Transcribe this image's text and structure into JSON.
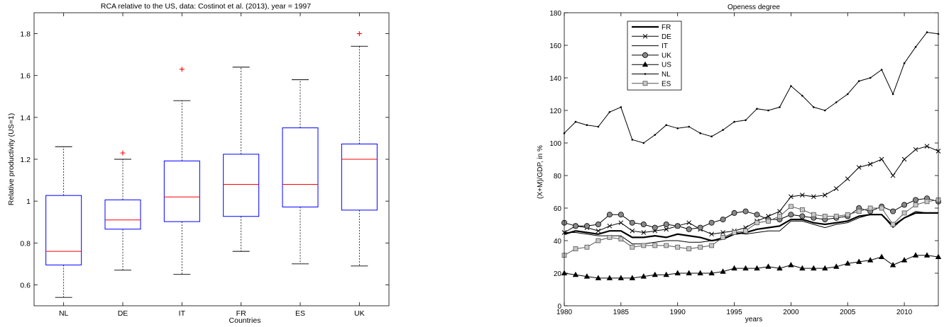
{
  "chart_data": [
    {
      "type": "box",
      "title": "RCA relative to the US, data: Costinot et al. (2013), year = 1997",
      "xlabel": "Countries",
      "ylabel": "Relative productivity (US=1)",
      "ylim": [
        0.5,
        1.9
      ],
      "yticks": [
        0.6,
        0.8,
        1,
        1.2,
        1.4,
        1.6,
        1.8
      ],
      "ytick_labels": [
        "0.6",
        "0.8",
        "1",
        "1.2",
        "1.4",
        "1.6",
        "1.8"
      ],
      "categories": [
        "NL",
        "DE",
        "IT",
        "FR",
        "ES",
        "UK"
      ],
      "boxes": [
        {
          "min": 0.54,
          "q1": 0.695,
          "median": 0.76,
          "q3": 1.027,
          "max": 1.26,
          "outliers": []
        },
        {
          "min": 0.67,
          "q1": 0.866,
          "median": 0.91,
          "q3": 1.006,
          "max": 1.2,
          "outliers": [
            1.23
          ]
        },
        {
          "min": 0.65,
          "q1": 0.902,
          "median": 1.02,
          "q3": 1.192,
          "max": 1.48,
          "outliers": [
            1.63
          ]
        },
        {
          "min": 0.76,
          "q1": 0.927,
          "median": 1.08,
          "q3": 1.224,
          "max": 1.64,
          "outliers": []
        },
        {
          "min": 0.7,
          "q1": 0.972,
          "median": 1.08,
          "q3": 1.35,
          "max": 1.58,
          "outliers": []
        },
        {
          "min": 0.69,
          "q1": 0.957,
          "median": 1.2,
          "q3": 1.273,
          "max": 1.74,
          "outliers": [
            1.8
          ]
        }
      ],
      "colors": {
        "box": "#0000ff",
        "median": "#ff0000",
        "outlier": "#ff0000",
        "whisker": "#000000"
      }
    },
    {
      "type": "line",
      "title": "Openess degree",
      "xlabel": "years",
      "ylabel": "(X+M)/GDP, in %",
      "xlim": [
        1980,
        2013
      ],
      "ylim": [
        0,
        180
      ],
      "xticks": [
        1980,
        1985,
        1990,
        1995,
        2000,
        2005,
        2010
      ],
      "xtick_labels": [
        "1980",
        "1985",
        "1990",
        "1995",
        "2000",
        "2005",
        "2010"
      ],
      "yticks": [
        0,
        20,
        40,
        60,
        80,
        100,
        120,
        140,
        160,
        180
      ],
      "ytick_labels": [
        "0",
        "20",
        "40",
        "60",
        "80",
        "100",
        "120",
        "140",
        "160",
        "180"
      ],
      "legend_position": "top-left",
      "x": [
        1980,
        1981,
        1982,
        1983,
        1984,
        1985,
        1986,
        1987,
        1988,
        1989,
        1990,
        1991,
        1992,
        1993,
        1994,
        1995,
        1996,
        1997,
        1998,
        1999,
        2000,
        2001,
        2002,
        2003,
        2004,
        2005,
        2006,
        2007,
        2008,
        2009,
        2010,
        2011,
        2012,
        2013
      ],
      "series": [
        {
          "name": "FR",
          "style": "thick",
          "marker": "none",
          "values": [
            44,
            46,
            45,
            44,
            46,
            46,
            42,
            42,
            43,
            42,
            44,
            43,
            42,
            40,
            41,
            44,
            45,
            47,
            48,
            49,
            53,
            53,
            51,
            50,
            51,
            52,
            55,
            56,
            56,
            49,
            54,
            57,
            57,
            57
          ]
        },
        {
          "name": "DE",
          "style": "thin",
          "marker": "x",
          "values": [
            45,
            49,
            48,
            46,
            49,
            51,
            46,
            45,
            46,
            47,
            49,
            51,
            47,
            44,
            45,
            46,
            48,
            52,
            55,
            58,
            67,
            68,
            67,
            68,
            72,
            78,
            85,
            87,
            90,
            80,
            90,
            96,
            98,
            95
          ]
        },
        {
          "name": "IT",
          "style": "thin",
          "marker": "none",
          "values": [
            45,
            45,
            44,
            43,
            43,
            43,
            38,
            38,
            39,
            40,
            40,
            39,
            39,
            40,
            42,
            45,
            44,
            45,
            46,
            46,
            52,
            52,
            50,
            48,
            50,
            51,
            54,
            56,
            56,
            48,
            54,
            58,
            57,
            57
          ]
        },
        {
          "name": "UK",
          "style": "thin",
          "marker": "circle",
          "values": [
            51,
            49,
            49,
            50,
            56,
            56,
            51,
            50,
            48,
            50,
            49,
            47,
            48,
            51,
            53,
            57,
            58,
            56,
            53,
            53,
            56,
            55,
            54,
            53,
            54,
            55,
            60,
            58,
            61,
            58,
            62,
            65,
            66,
            64
          ]
        },
        {
          "name": "US",
          "style": "thin",
          "marker": "triangle",
          "values": [
            20,
            19,
            18,
            17,
            17,
            17,
            17,
            18,
            19,
            19,
            20,
            20,
            20,
            20,
            21,
            23,
            23,
            23,
            24,
            23,
            25,
            23,
            23,
            23,
            24,
            26,
            27,
            28,
            30,
            25,
            28,
            31,
            31,
            30
          ]
        },
        {
          "name": "NL",
          "style": "thin",
          "marker": "dot",
          "values": [
            106,
            113,
            111,
            110,
            119,
            122,
            102,
            100,
            105,
            111,
            109,
            110,
            106,
            104,
            108,
            113,
            114,
            121,
            120,
            122,
            135,
            129,
            122,
            120,
            125,
            130,
            138,
            140,
            145,
            130,
            149,
            159,
            168,
            167
          ]
        },
        {
          "name": "ES",
          "style": "thin",
          "marker": "square",
          "values": [
            31,
            35,
            36,
            40,
            42,
            41,
            36,
            37,
            37,
            37,
            36,
            35,
            36,
            37,
            42,
            45,
            46,
            51,
            52,
            55,
            61,
            59,
            56,
            55,
            55,
            56,
            58,
            60,
            60,
            50,
            57,
            62,
            64,
            65
          ]
        }
      ]
    }
  ]
}
